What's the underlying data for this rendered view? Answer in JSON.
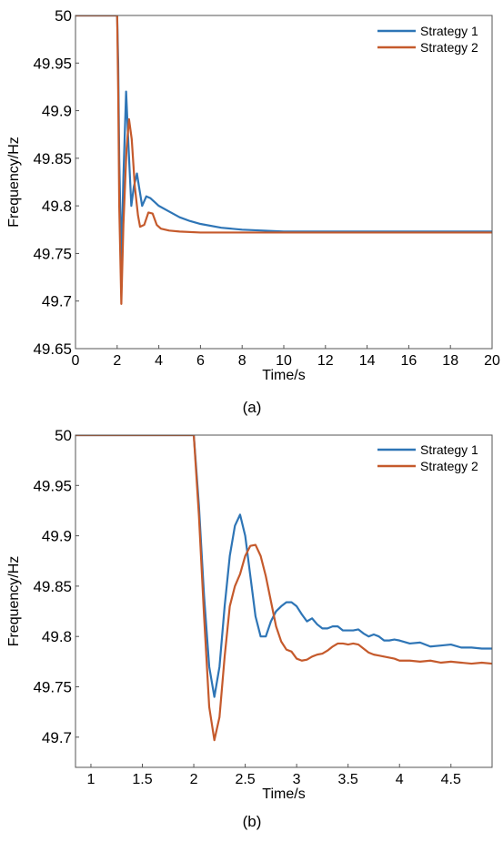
{
  "colors": {
    "strategy1": "#2e75b6",
    "strategy2": "#c55a2c"
  },
  "chart_data": [
    {
      "type": "line",
      "caption": "(a)",
      "xlabel": "Time/s",
      "ylabel": "Frequency/Hz",
      "xlim": [
        0,
        20
      ],
      "ylim": [
        49.65,
        50
      ],
      "xticks": [
        "0",
        "2",
        "4",
        "6",
        "8",
        "10",
        "12",
        "14",
        "16",
        "18",
        "20"
      ],
      "yticks": [
        "49.65",
        "49.7",
        "49.75",
        "49.8",
        "49.85",
        "49.9",
        "49.95",
        "50"
      ],
      "grid": false,
      "legend_position": "top-right",
      "series": [
        {
          "name": "Strategy 1",
          "color": "#2e75b6",
          "x": [
            0,
            2.0,
            2.05,
            2.1,
            2.2,
            2.3,
            2.43,
            2.55,
            2.68,
            2.8,
            2.95,
            3.05,
            3.2,
            3.4,
            3.6,
            3.8,
            4.0,
            4.5,
            5.0,
            5.5,
            6.0,
            7.0,
            8.0,
            9.0,
            10.0,
            12.0,
            14.0,
            16.0,
            18.0,
            20.0
          ],
          "y": [
            50,
            50,
            49.95,
            49.85,
            49.74,
            49.83,
            49.92,
            49.86,
            49.8,
            49.82,
            49.834,
            49.82,
            49.8,
            49.81,
            49.808,
            49.804,
            49.8,
            49.794,
            49.788,
            49.784,
            49.781,
            49.777,
            49.775,
            49.774,
            49.773,
            49.773,
            49.773,
            49.773,
            49.773,
            49.773
          ]
        },
        {
          "name": "Strategy 2",
          "color": "#c55a2c",
          "x": [
            0,
            2.0,
            2.05,
            2.1,
            2.2,
            2.3,
            2.45,
            2.57,
            2.7,
            2.85,
            3.0,
            3.1,
            3.3,
            3.5,
            3.7,
            3.9,
            4.1,
            4.5,
            5.0,
            6.0,
            8.0,
            10.0,
            12.0,
            14.0,
            16.0,
            18.0,
            20.0
          ],
          "y": [
            50,
            50,
            49.92,
            49.8,
            49.697,
            49.78,
            49.86,
            49.891,
            49.87,
            49.82,
            49.79,
            49.778,
            49.78,
            49.793,
            49.792,
            49.78,
            49.776,
            49.774,
            49.773,
            49.772,
            49.772,
            49.772,
            49.772,
            49.772,
            49.772,
            49.772,
            49.772
          ]
        }
      ]
    },
    {
      "type": "line",
      "caption": "(b)",
      "xlabel": "Time/s",
      "ylabel": "Frequency/Hz",
      "xlim": [
        0.85,
        4.9
      ],
      "ylim": [
        49.67,
        50.0
      ],
      "xticks": [
        "1",
        "1.5",
        "2",
        "2.5",
        "3",
        "3.5",
        "4",
        "4.5"
      ],
      "yticks": [
        "49.7",
        "49.75",
        "49.8",
        "49.85",
        "49.9",
        "49.95",
        "50"
      ],
      "grid": false,
      "legend_position": "top-right",
      "series": [
        {
          "name": "Strategy 1",
          "color": "#2e75b6",
          "x": [
            0.85,
            2.0,
            2.05,
            2.1,
            2.15,
            2.2,
            2.25,
            2.3,
            2.35,
            2.4,
            2.45,
            2.5,
            2.55,
            2.6,
            2.65,
            2.7,
            2.75,
            2.8,
            2.85,
            2.9,
            2.95,
            3.0,
            3.05,
            3.1,
            3.15,
            3.2,
            3.25,
            3.3,
            3.35,
            3.4,
            3.45,
            3.5,
            3.55,
            3.6,
            3.65,
            3.7,
            3.75,
            3.8,
            3.85,
            3.9,
            3.95,
            4.0,
            4.1,
            4.2,
            4.3,
            4.4,
            4.5,
            4.6,
            4.7,
            4.8,
            4.9
          ],
          "y": [
            50,
            50,
            49.93,
            49.84,
            49.77,
            49.74,
            49.77,
            49.83,
            49.88,
            49.91,
            49.921,
            49.9,
            49.86,
            49.82,
            49.8,
            49.8,
            49.815,
            49.825,
            49.83,
            49.834,
            49.834,
            49.83,
            49.822,
            49.815,
            49.818,
            49.812,
            49.808,
            49.808,
            49.81,
            49.81,
            49.806,
            49.806,
            49.806,
            49.807,
            49.803,
            49.8,
            49.802,
            49.8,
            49.796,
            49.796,
            49.797,
            49.796,
            49.793,
            49.794,
            49.79,
            49.791,
            49.792,
            49.789,
            49.789,
            49.788,
            49.788
          ]
        },
        {
          "name": "Strategy 2",
          "color": "#c55a2c",
          "x": [
            0.85,
            2.0,
            2.05,
            2.1,
            2.15,
            2.2,
            2.25,
            2.3,
            2.35,
            2.4,
            2.45,
            2.5,
            2.55,
            2.6,
            2.65,
            2.7,
            2.75,
            2.8,
            2.85,
            2.9,
            2.95,
            3.0,
            3.05,
            3.1,
            3.15,
            3.2,
            3.25,
            3.3,
            3.35,
            3.4,
            3.45,
            3.5,
            3.55,
            3.6,
            3.65,
            3.7,
            3.75,
            3.8,
            3.85,
            3.9,
            3.95,
            4.0,
            4.1,
            4.2,
            4.3,
            4.4,
            4.5,
            4.6,
            4.7,
            4.8,
            4.9
          ],
          "y": [
            50,
            50,
            49.92,
            49.82,
            49.73,
            49.697,
            49.72,
            49.78,
            49.83,
            49.85,
            49.862,
            49.88,
            49.89,
            49.891,
            49.88,
            49.86,
            49.835,
            49.81,
            49.795,
            49.787,
            49.785,
            49.778,
            49.776,
            49.777,
            49.78,
            49.782,
            49.783,
            49.786,
            49.79,
            49.793,
            49.793,
            49.792,
            49.793,
            49.792,
            49.788,
            49.784,
            49.782,
            49.781,
            49.78,
            49.779,
            49.778,
            49.776,
            49.776,
            49.775,
            49.776,
            49.774,
            49.775,
            49.774,
            49.773,
            49.774,
            49.773
          ]
        }
      ]
    }
  ]
}
